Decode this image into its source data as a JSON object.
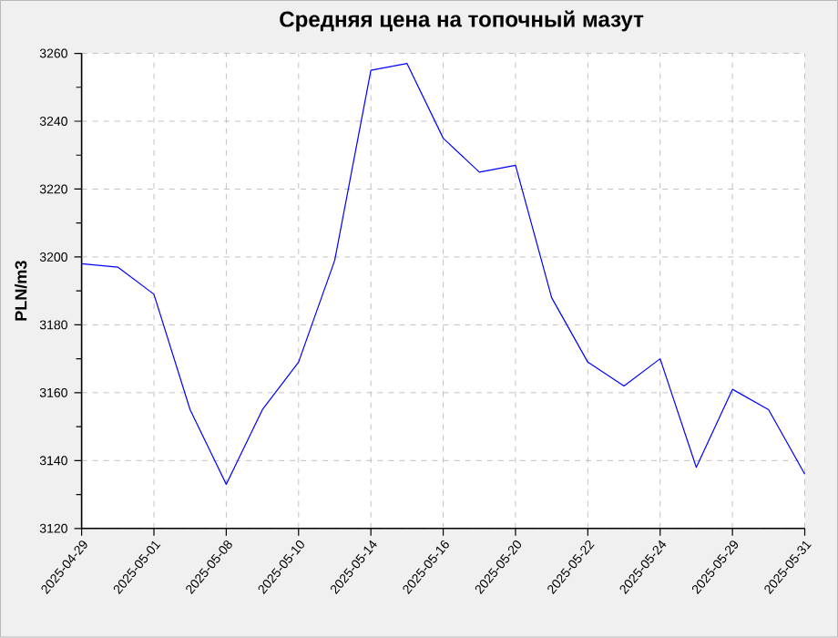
{
  "chart_data": {
    "type": "line",
    "title": "Средняя цена на топочный мазут",
    "ylabel": "PLN/m3",
    "categories": [
      "2025-04-29",
      null,
      "2025-05-01",
      null,
      "2025-05-08",
      null,
      "2025-05-10",
      null,
      "2025-05-14",
      null,
      "2025-05-16",
      null,
      "2025-05-20",
      null,
      "2025-05-22",
      null,
      "2025-05-24",
      null,
      "2025-05-29",
      null,
      "2025-05-31"
    ],
    "series": [
      {
        "color": "#0000ff",
        "values": [
          3198,
          3197,
          3189,
          3155,
          3133,
          3155,
          3169,
          3199,
          3255,
          3257,
          3235,
          3225,
          3227,
          3188,
          3169,
          3162,
          3170,
          3138,
          3161,
          3155,
          3136
        ]
      }
    ],
    "ylim": [
      3120,
      3260
    ],
    "yticks": [
      3120,
      3140,
      3160,
      3180,
      3200,
      3220,
      3240,
      3260
    ],
    "grid": true,
    "marker": "none",
    "line_style": "solid"
  }
}
